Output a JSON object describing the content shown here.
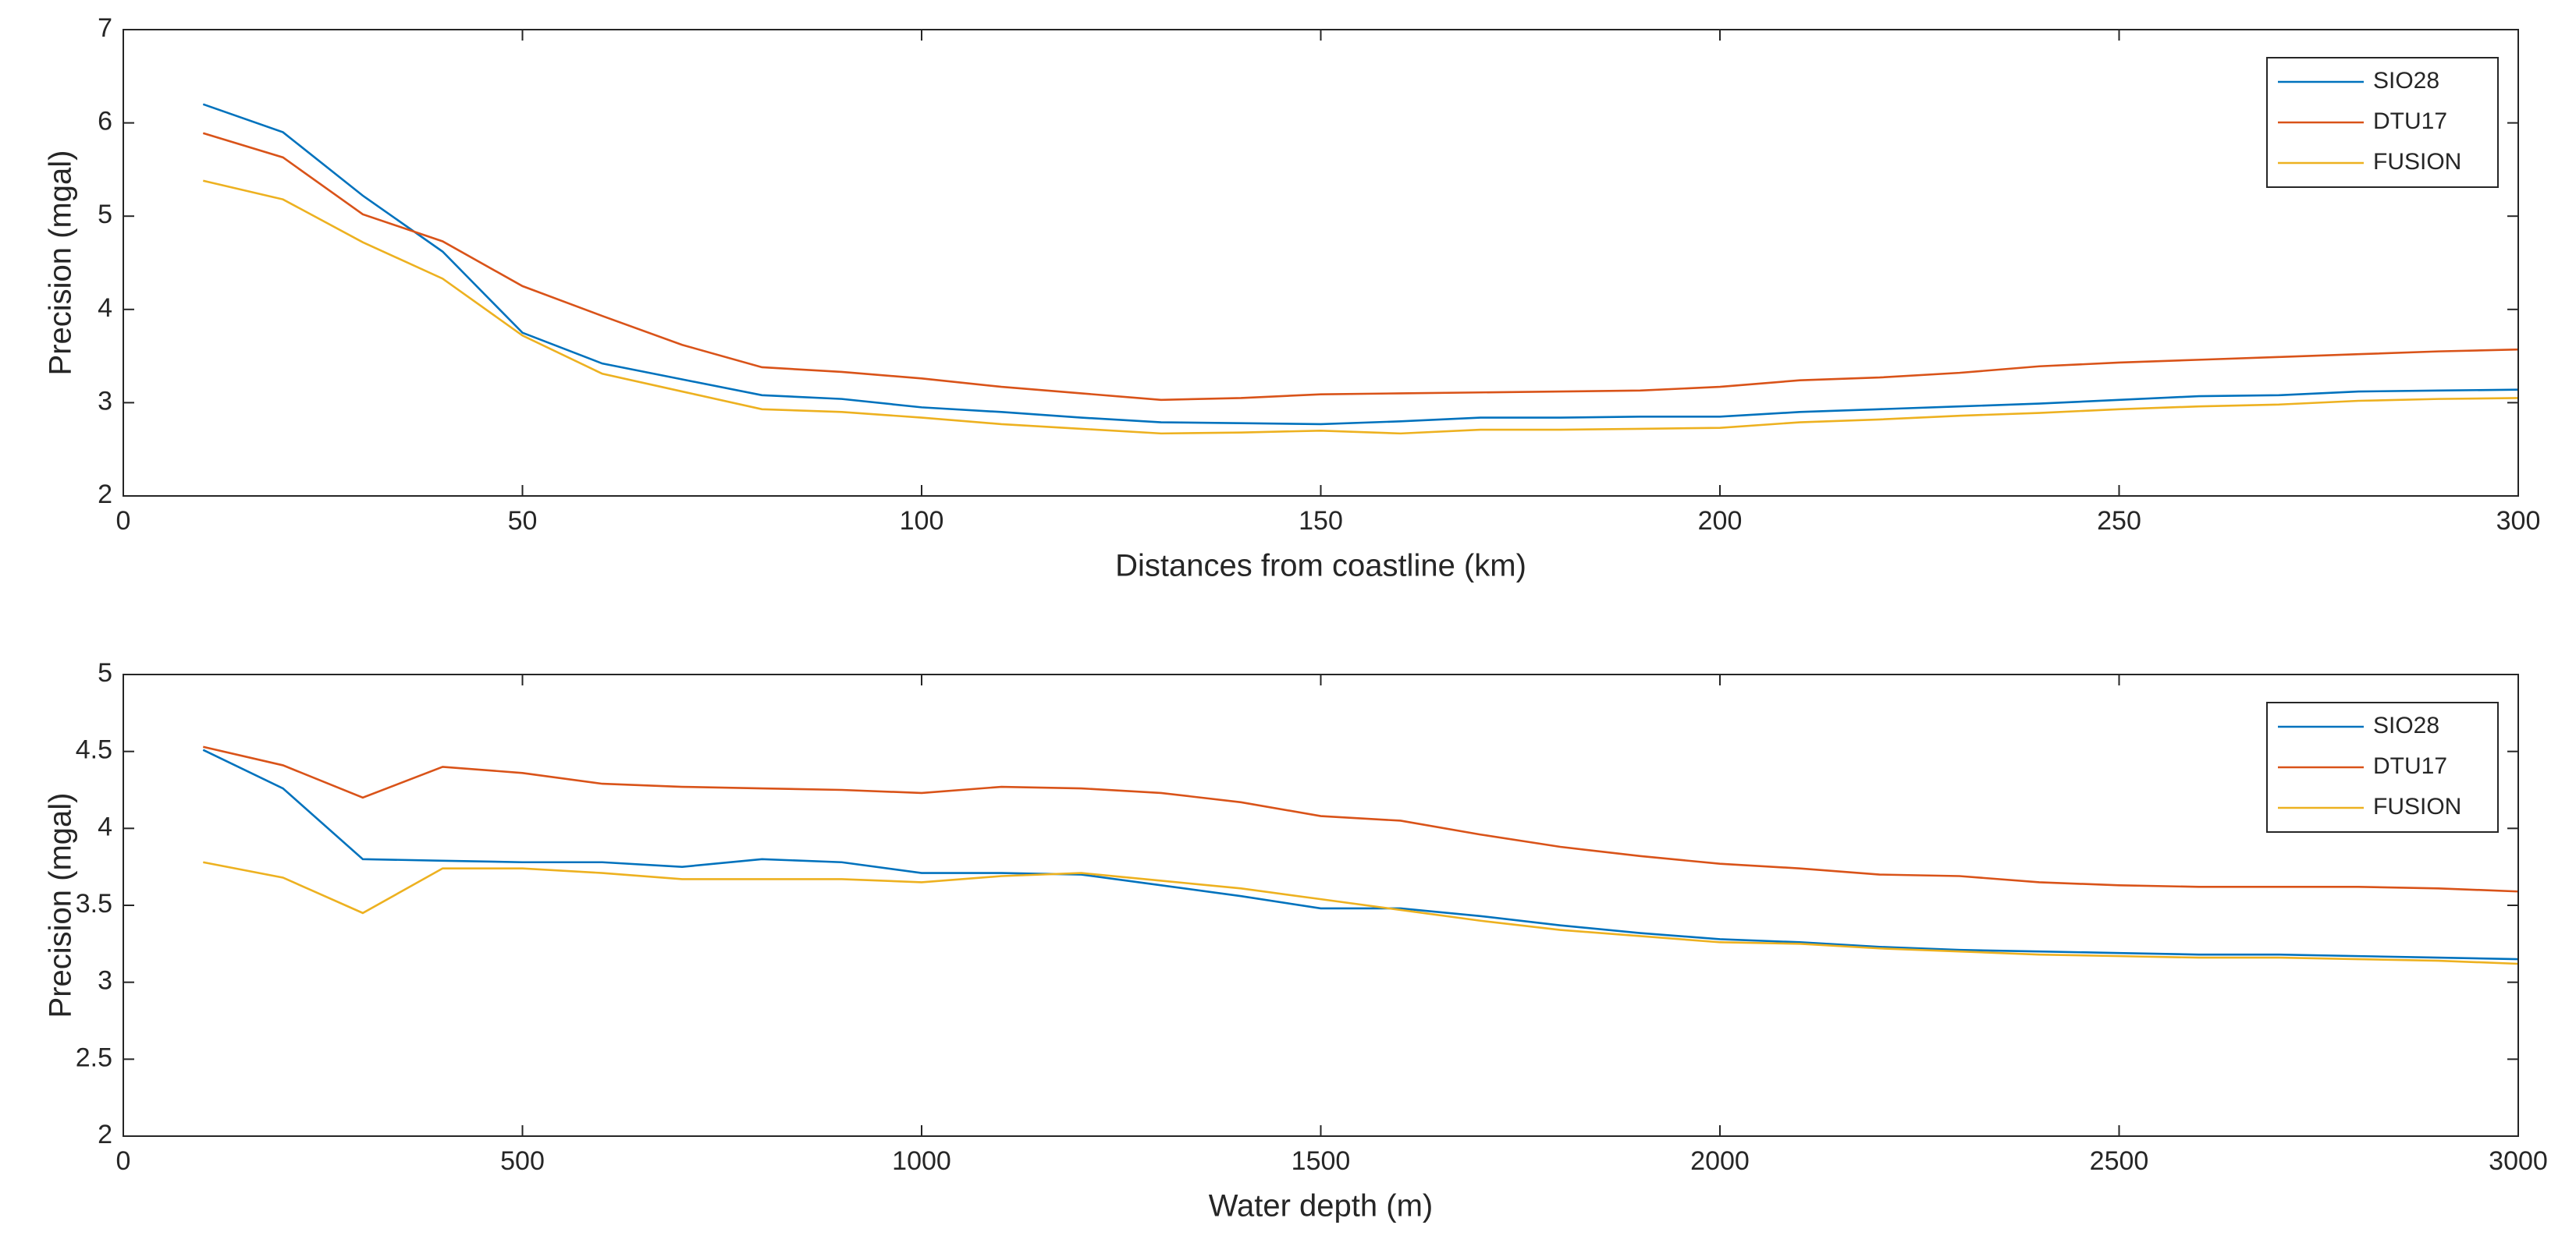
{
  "chart_data": [
    {
      "type": "line",
      "xlabel": "Distances from coastline (km)",
      "ylabel": "Precision (mgal)",
      "x": [
        10,
        20,
        30,
        40,
        50,
        60,
        70,
        80,
        90,
        100,
        110,
        120,
        130,
        140,
        150,
        160,
        170,
        180,
        190,
        200,
        210,
        220,
        230,
        240,
        250,
        260,
        270,
        280,
        290,
        300
      ],
      "series": [
        {
          "name": "SIO28",
          "color": "#0072bd",
          "values": [
            6.2,
            5.9,
            5.22,
            4.62,
            3.75,
            3.42,
            3.25,
            3.08,
            3.04,
            2.95,
            2.9,
            2.84,
            2.79,
            2.78,
            2.77,
            2.8,
            2.84,
            2.84,
            2.85,
            2.85,
            2.9,
            2.93,
            2.96,
            2.99,
            3.03,
            3.07,
            3.08,
            3.12,
            3.13,
            3.14
          ]
        },
        {
          "name": "DTU17",
          "color": "#d95319",
          "values": [
            5.89,
            5.63,
            5.02,
            4.73,
            4.25,
            3.93,
            3.62,
            3.38,
            3.33,
            3.26,
            3.17,
            3.1,
            3.03,
            3.05,
            3.09,
            3.1,
            3.11,
            3.12,
            3.13,
            3.17,
            3.24,
            3.27,
            3.32,
            3.39,
            3.43,
            3.46,
            3.49,
            3.52,
            3.55,
            3.57
          ]
        },
        {
          "name": "FUSION",
          "color": "#edb120",
          "values": [
            5.38,
            5.18,
            4.72,
            4.33,
            3.72,
            3.31,
            3.12,
            2.93,
            2.9,
            2.84,
            2.77,
            2.72,
            2.67,
            2.68,
            2.7,
            2.67,
            2.71,
            2.71,
            2.72,
            2.73,
            2.79,
            2.82,
            2.86,
            2.89,
            2.93,
            2.96,
            2.98,
            3.02,
            3.04,
            3.05
          ]
        }
      ],
      "xlim": [
        0,
        300
      ],
      "xticks": [
        0,
        50,
        100,
        150,
        200,
        250,
        300
      ],
      "ylim": [
        2,
        7
      ],
      "yticks": [
        2,
        3,
        4,
        5,
        6,
        7
      ],
      "legend": "upper right"
    },
    {
      "type": "line",
      "xlabel": "Water depth (m)",
      "ylabel": "Precision (mgal)",
      "x": [
        100,
        200,
        300,
        400,
        500,
        600,
        700,
        800,
        900,
        1000,
        1100,
        1200,
        1300,
        1400,
        1500,
        1600,
        1700,
        1800,
        1900,
        2000,
        2100,
        2200,
        2300,
        2400,
        2500,
        2600,
        2700,
        2800,
        2900,
        3000
      ],
      "series": [
        {
          "name": "SIO28",
          "color": "#0072bd",
          "values": [
            4.51,
            4.26,
            3.8,
            3.79,
            3.78,
            3.78,
            3.75,
            3.8,
            3.78,
            3.71,
            3.71,
            3.7,
            3.63,
            3.56,
            3.48,
            3.48,
            3.43,
            3.37,
            3.32,
            3.28,
            3.26,
            3.23,
            3.21,
            3.2,
            3.19,
            3.18,
            3.18,
            3.17,
            3.16,
            3.15
          ]
        },
        {
          "name": "DTU17",
          "color": "#d95319",
          "values": [
            4.53,
            4.41,
            4.2,
            4.4,
            4.36,
            4.29,
            4.27,
            4.26,
            4.25,
            4.23,
            4.27,
            4.26,
            4.23,
            4.17,
            4.08,
            4.05,
            3.96,
            3.88,
            3.82,
            3.77,
            3.74,
            3.7,
            3.69,
            3.65,
            3.63,
            3.62,
            3.62,
            3.62,
            3.61,
            3.59
          ]
        },
        {
          "name": "FUSION",
          "color": "#edb120",
          "values": [
            3.78,
            3.68,
            3.45,
            3.74,
            3.74,
            3.71,
            3.67,
            3.67,
            3.67,
            3.65,
            3.69,
            3.71,
            3.66,
            3.61,
            3.54,
            3.47,
            3.4,
            3.34,
            3.3,
            3.26,
            3.25,
            3.22,
            3.2,
            3.18,
            3.17,
            3.16,
            3.16,
            3.15,
            3.14,
            3.12
          ]
        }
      ],
      "xlim": [
        0,
        3000
      ],
      "xticks": [
        0,
        500,
        1000,
        1500,
        2000,
        2500,
        3000
      ],
      "ylim": [
        2,
        5
      ],
      "yticks": [
        2,
        2.5,
        3,
        3.5,
        4,
        4.5,
        5
      ],
      "legend": "upper right"
    }
  ]
}
